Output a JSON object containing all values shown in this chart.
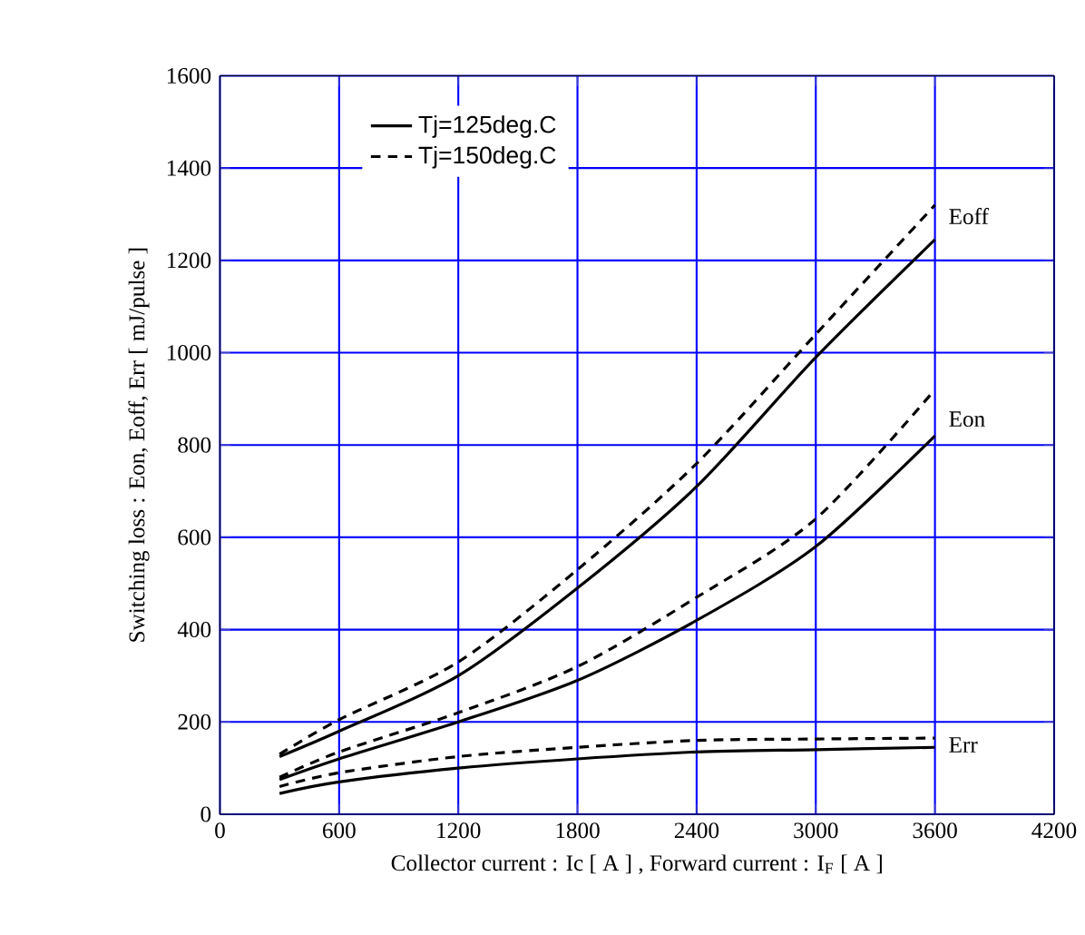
{
  "chart_data": {
    "type": "line",
    "xlabel": "Collector current : Ic [ A ] , Forward current : I$_{F}$ [ A ]",
    "ylabel": "Switching loss : Eon, Eoff, Err [ mJ/pulse ]",
    "xlim": [
      0,
      4200
    ],
    "xticks": [
      0,
      600,
      1200,
      1800,
      2400,
      3000,
      3600,
      4200
    ],
    "ylim": [
      0,
      1600
    ],
    "yticks": [
      0,
      200,
      400,
      600,
      800,
      1000,
      1200,
      1400,
      1600
    ],
    "grid": true,
    "legend": "top left",
    "marker": "none",
    "series": [
      {
        "name": "Tj=125deg.C",
        "color": "#000000",
        "line_style": "solid",
        "x": [
          300,
          600,
          1200,
          1800,
          2400,
          3000,
          3600
        ],
        "values": [
          125,
          180,
          300,
          490,
          710,
          990,
          1245
        ]
      },
      {
        "name": "Tj=150deg.C",
        "color": "#000000",
        "line_style": "dashed",
        "x": [
          300,
          600,
          1200,
          1800,
          2400,
          3000,
          3600
        ],
        "values": [
          130,
          205,
          330,
          530,
          760,
          1040,
          1320
        ]
      },
      {
        "color": "#000000",
        "line_style": "solid",
        "x": [
          300,
          600,
          1200,
          1800,
          2400,
          3000,
          3600
        ],
        "values": [
          75,
          120,
          200,
          290,
          420,
          580,
          820
        ]
      },
      {
        "color": "#000000",
        "line_style": "dashed",
        "x": [
          300,
          600,
          1200,
          1800,
          2400,
          3000,
          3600
        ],
        "values": [
          80,
          135,
          220,
          320,
          470,
          640,
          920
        ]
      },
      {
        "color": "#000000",
        "line_style": "solid",
        "x": [
          300,
          600,
          1200,
          1800,
          2400,
          3000,
          3600
        ],
        "values": [
          45,
          70,
          100,
          120,
          135,
          140,
          145
        ]
      },
      {
        "color": "#000000",
        "line_style": "dashed",
        "x": [
          300,
          600,
          1200,
          1800,
          2400,
          3000,
          3600
        ],
        "values": [
          60,
          90,
          125,
          145,
          160,
          163,
          165
        ]
      }
    ],
    "annotations": [
      "Eoff",
      "Eon",
      "Err"
    ]
  }
}
